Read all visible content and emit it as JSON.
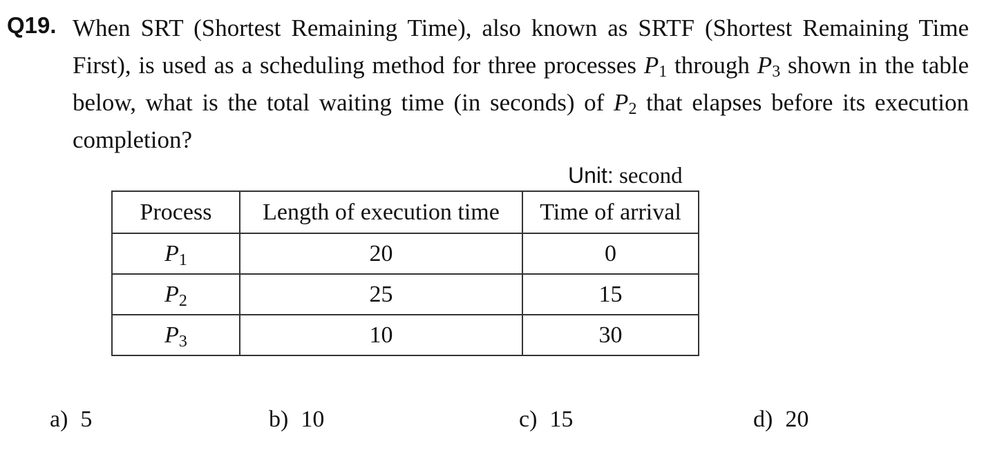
{
  "question": {
    "number": "Q19.",
    "text_part1": "When SRT (Shortest Remaining Time), also known as SRTF (Shortest Remaining Time First), is used as a scheduling method for three processes ",
    "p_first": "P",
    "p_first_sub": "1",
    "text_part2": " through ",
    "p_last": "P",
    "p_last_sub": "3",
    "text_part3": " shown in the table below, what is the total waiting time (in seconds) of ",
    "p_target": "P",
    "p_target_sub": "2",
    "text_part4": " that elapses before its execution completion?"
  },
  "table": {
    "unit_label": "Unit:",
    "unit_value": "second",
    "headers": [
      "Process",
      "Length of execution time",
      "Time of arrival"
    ],
    "rows": [
      {
        "process": "P",
        "sub": "1",
        "length": "20",
        "arrival": "0"
      },
      {
        "process": "P",
        "sub": "2",
        "length": "25",
        "arrival": "15"
      },
      {
        "process": "P",
        "sub": "3",
        "length": "10",
        "arrival": "30"
      }
    ]
  },
  "options": [
    {
      "letter": "a)",
      "value": "5"
    },
    {
      "letter": "b)",
      "value": "10"
    },
    {
      "letter": "c)",
      "value": "15"
    },
    {
      "letter": "d)",
      "value": "20"
    }
  ]
}
